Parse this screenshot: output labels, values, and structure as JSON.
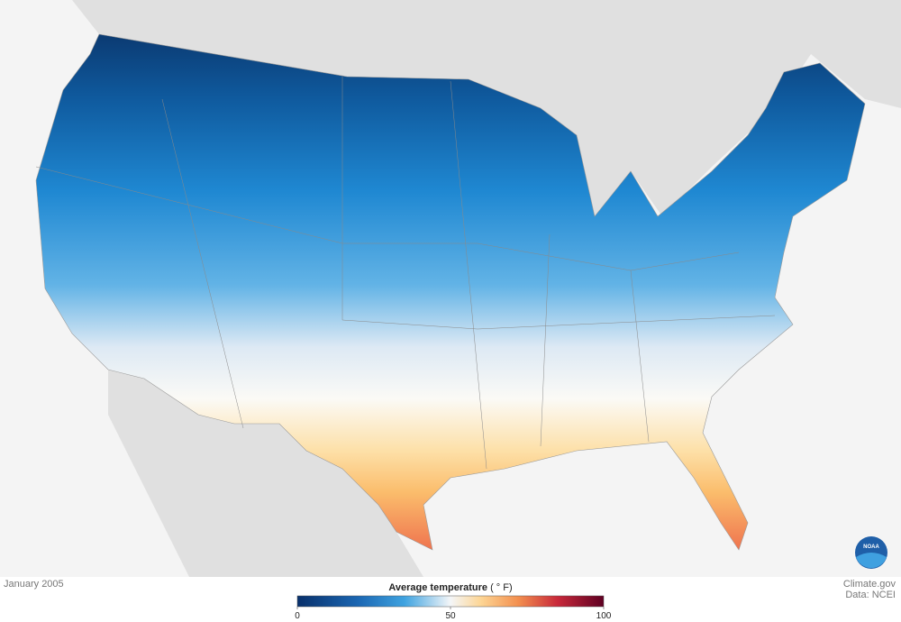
{
  "map": {
    "date": "January 2005"
  },
  "legend": {
    "title": "Average temperature",
    "unit": "( ° F)",
    "range": [
      0,
      100
    ],
    "ticks": [
      0,
      50,
      100
    ]
  },
  "credits": {
    "source": "Climate.gov",
    "data": "Data: NCEI"
  },
  "logo": {
    "text": "NOAA"
  }
}
